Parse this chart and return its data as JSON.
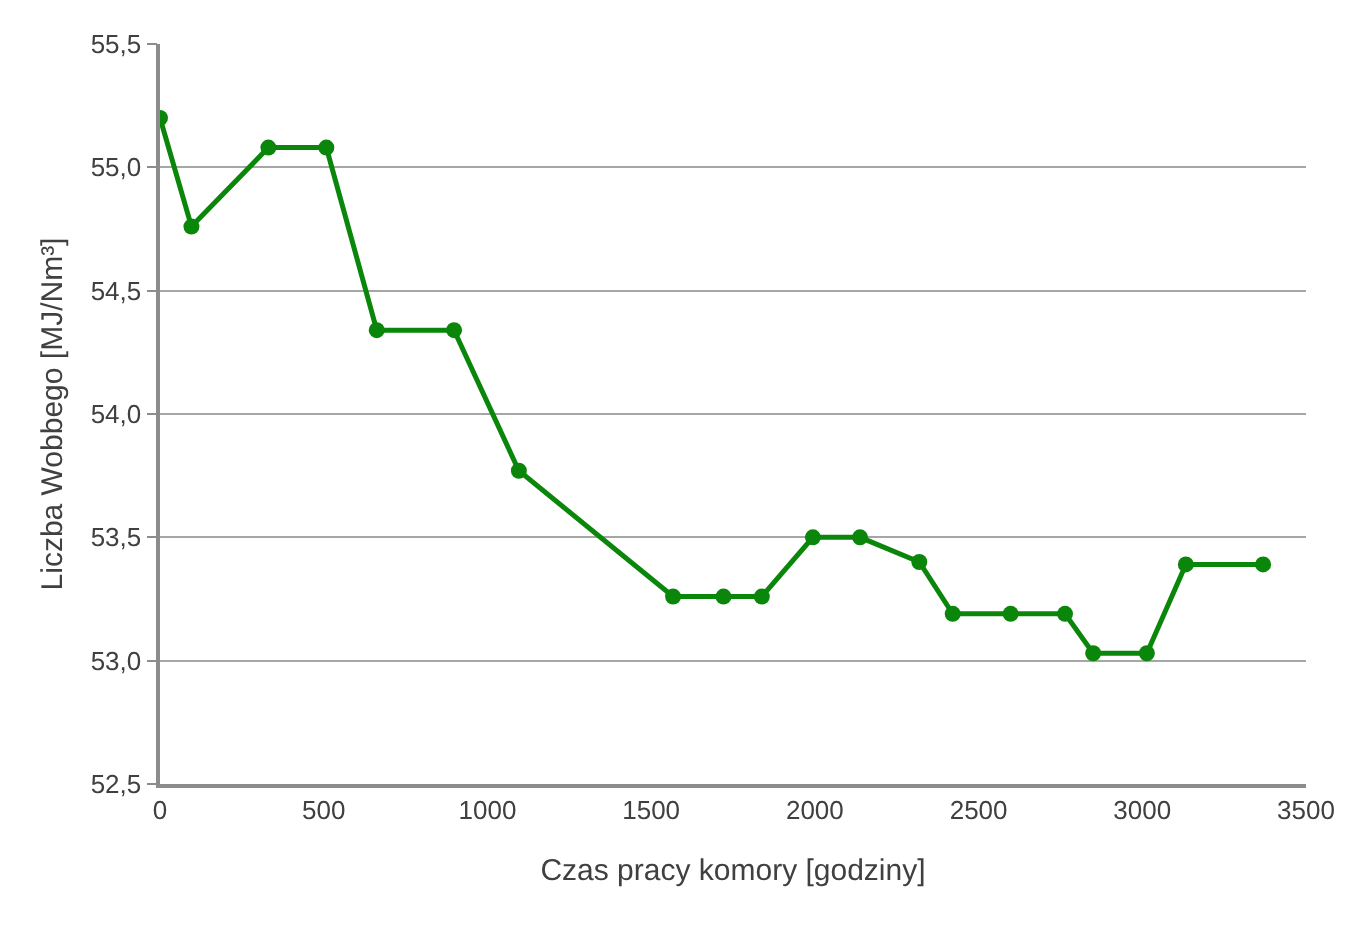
{
  "chart_data": {
    "type": "line",
    "xlabel": "Czas pracy komory [godziny]",
    "ylabel": "Liczba Wobbego [MJ/Nm³]",
    "x": [
      0,
      96,
      331,
      508,
      662,
      898,
      1096,
      1567,
      1721,
      1838,
      1994,
      2138,
      2319,
      2421,
      2598,
      2764,
      2850,
      3014,
      3133,
      3369
    ],
    "series": [
      {
        "color": "#0a870a",
        "values": [
          55.2,
          54.76,
          55.08,
          55.08,
          54.34,
          54.34,
          53.77,
          53.26,
          53.26,
          53.26,
          53.5,
          53.5,
          53.4,
          53.19,
          53.19,
          53.19,
          53.03,
          53.03,
          53.39,
          53.39
        ]
      }
    ],
    "xlim": [
      0,
      3500
    ],
    "xticks": [
      0,
      500,
      1000,
      1500,
      2000,
      2500,
      3000,
      3500
    ],
    "ylim": [
      52.5,
      55.5
    ],
    "yticks": [
      {
        "value": 52.5,
        "label": "52,5"
      },
      {
        "value": 53.0,
        "label": "53,0"
      },
      {
        "value": 53.5,
        "label": "53,5"
      },
      {
        "value": 54.0,
        "label": "54,0"
      },
      {
        "value": 54.5,
        "label": "54,5"
      },
      {
        "value": 55.0,
        "label": "55,0"
      },
      {
        "value": 55.5,
        "label": "55,5"
      }
    ],
    "grid": "y",
    "marker": "circle",
    "line_style": "solid"
  }
}
